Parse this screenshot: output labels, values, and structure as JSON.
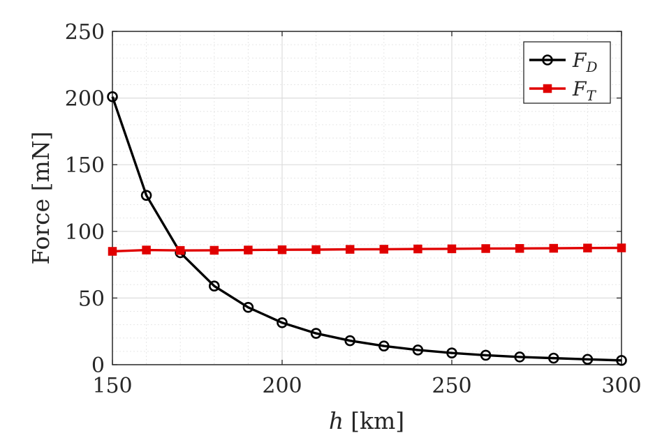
{
  "chart_data": {
    "type": "line",
    "title": "",
    "xlabel_var": "h",
    "xlabel_unit": "[km]",
    "ylabel": "Force [mN]",
    "xlim": [
      150,
      300
    ],
    "ylim": [
      0,
      250
    ],
    "xticks": [
      "150",
      "200",
      "250",
      "300"
    ],
    "yticks": [
      "0",
      "50",
      "100",
      "150",
      "200",
      "250"
    ],
    "grid": true,
    "minor_grid": true,
    "legend_position": "top-right",
    "x": [
      150,
      160,
      170,
      180,
      190,
      200,
      210,
      220,
      230,
      240,
      250,
      260,
      270,
      280,
      290,
      300
    ],
    "series": [
      {
        "name": "F_D",
        "legend_main": "F",
        "legend_sub": "D",
        "color": "#000000",
        "marker": "circle",
        "values": [
          201,
          127,
          84,
          59,
          43,
          31.5,
          23.5,
          18,
          14,
          11,
          8.8,
          7.1,
          5.8,
          4.9,
          4.0,
          3.2
        ]
      },
      {
        "name": "F_T",
        "legend_main": "F",
        "legend_sub": "T",
        "color": "#e00000",
        "marker": "square",
        "values": [
          85,
          86,
          85.7,
          85.8,
          86,
          86.2,
          86.3,
          86.5,
          86.6,
          86.8,
          86.9,
          87.1,
          87.2,
          87.3,
          87.5,
          87.6
        ]
      }
    ]
  }
}
